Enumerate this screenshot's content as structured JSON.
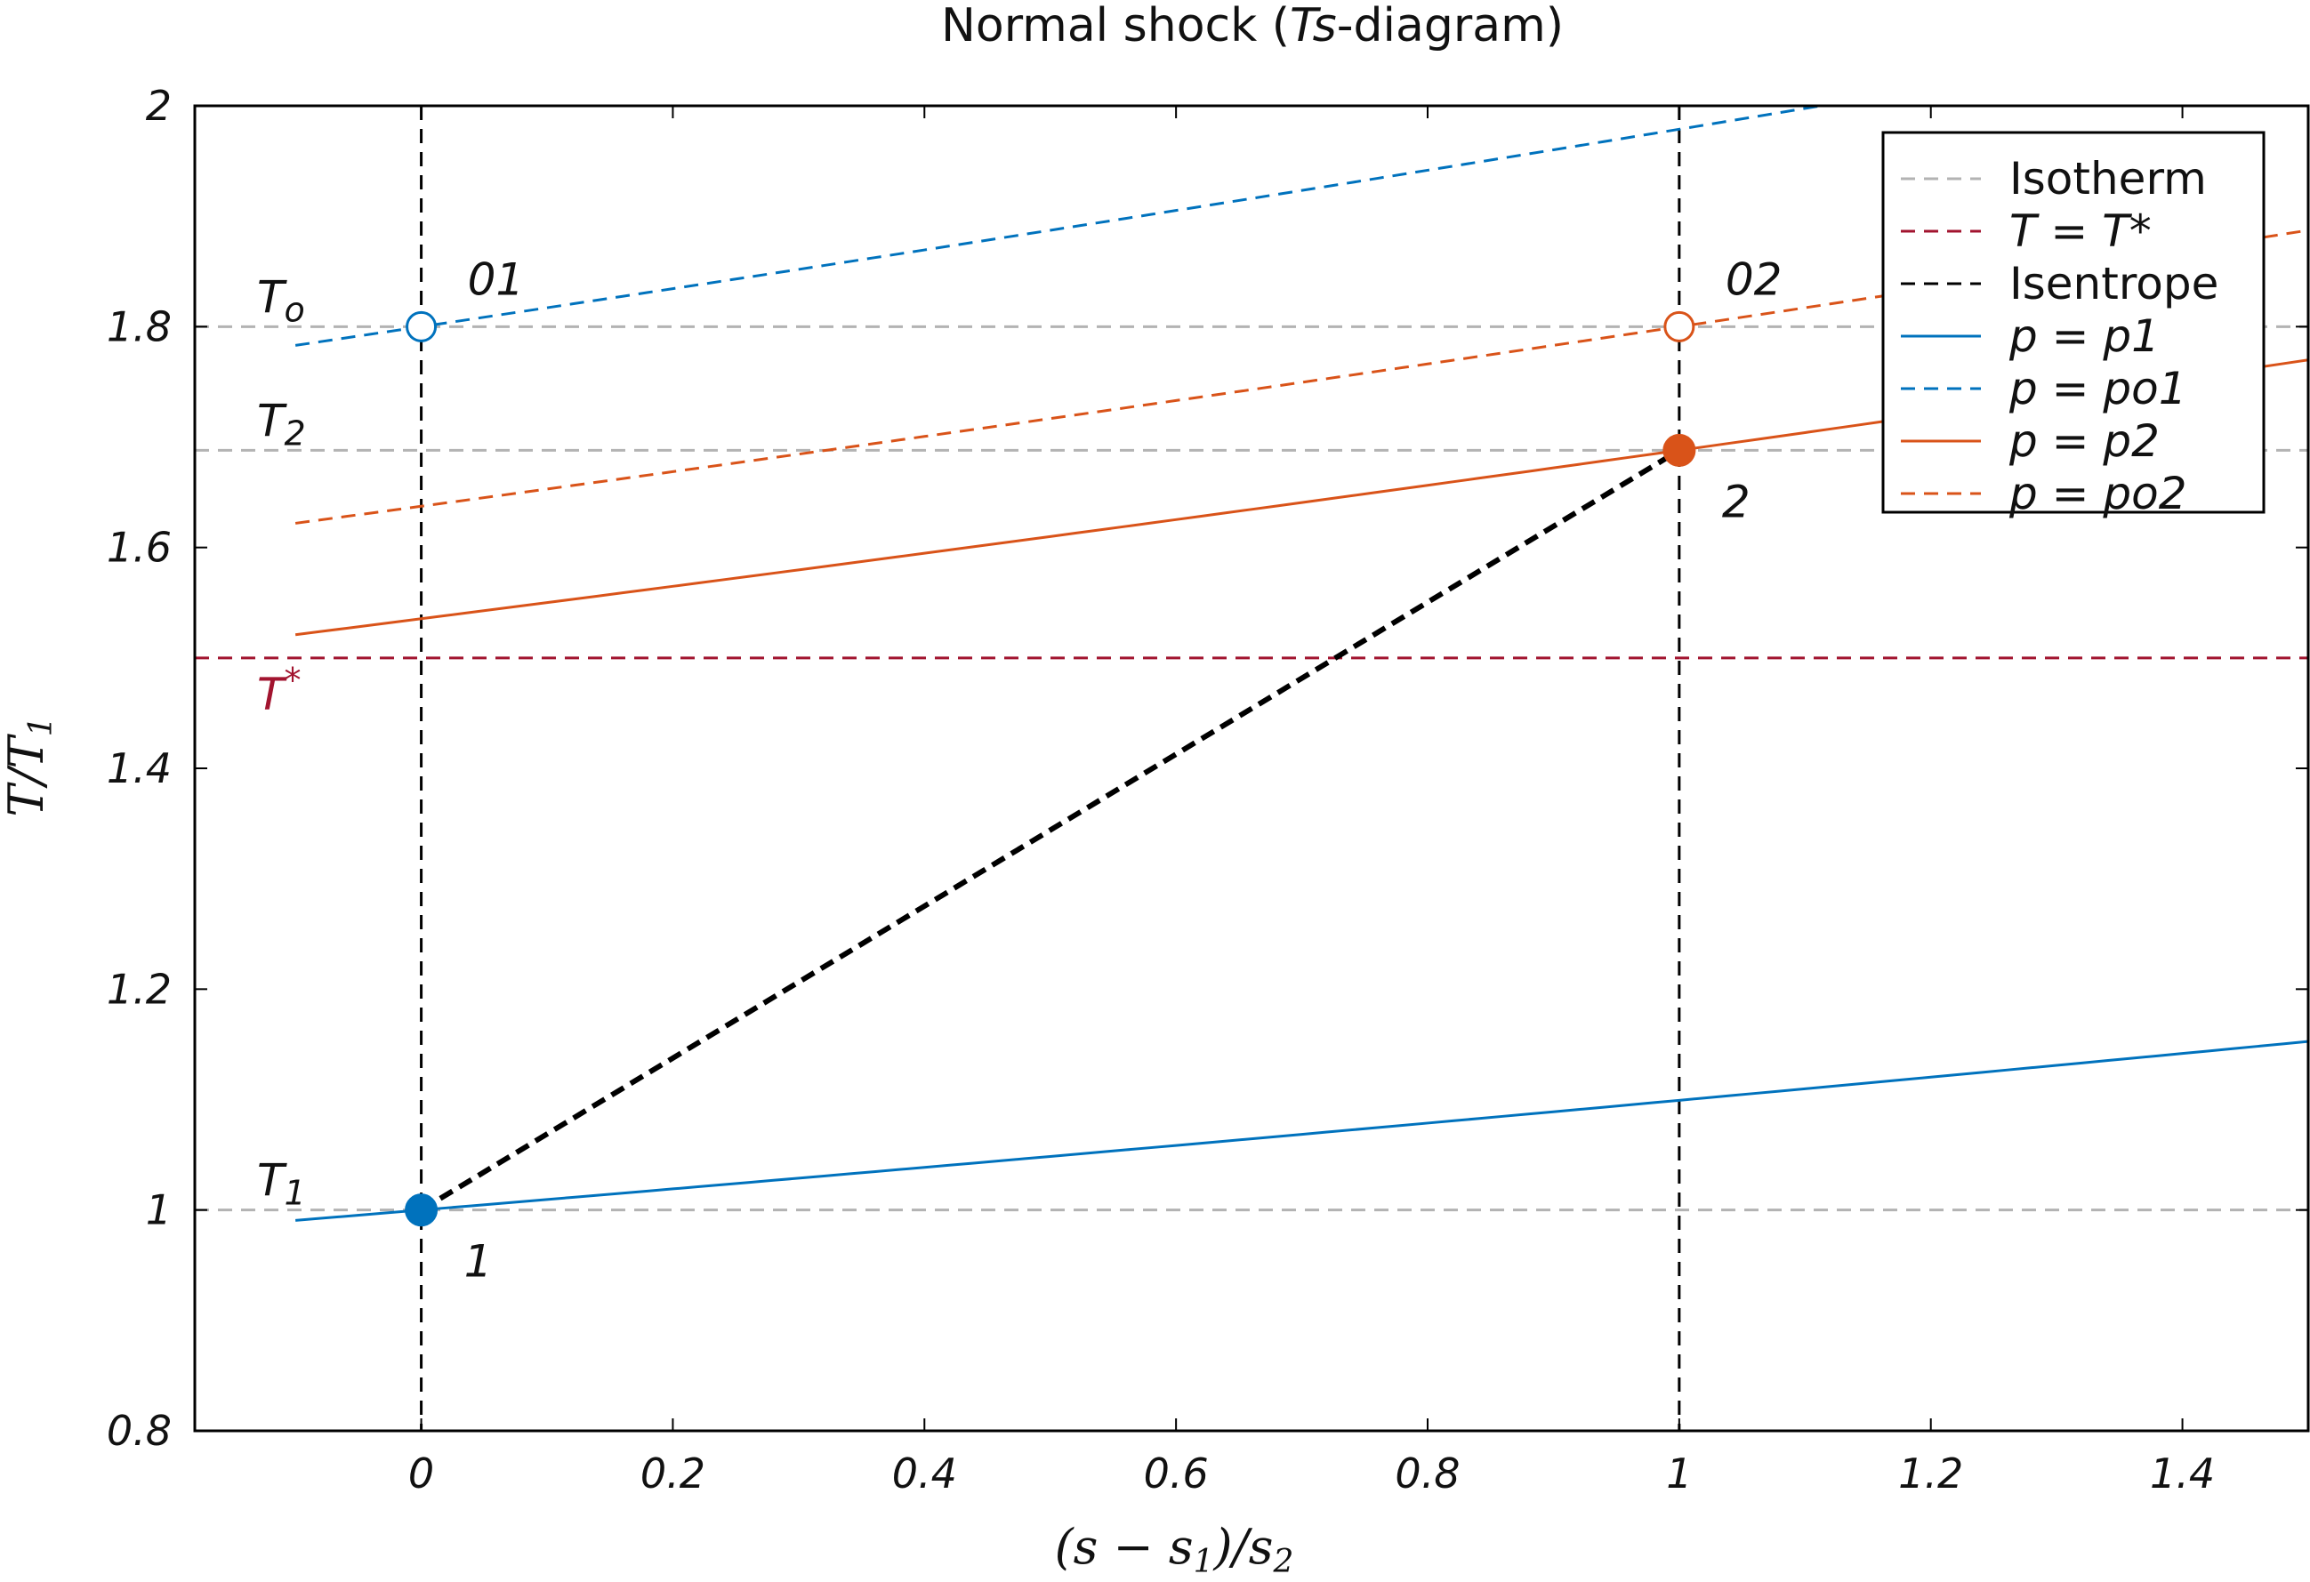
{
  "chart_data": {
    "type": "line",
    "title": "Normal shock (Ts-diagram)",
    "title_parts": {
      "pre": "Normal shock (",
      "var": "Ts",
      "post": "-diagram)"
    },
    "xlabel": "(s − s1)/s2",
    "xlabel_parts": {
      "pre": "(s − s",
      "sub1": "1",
      "mid": ")/s",
      "sub2": "2"
    },
    "ylabel": "T/T1",
    "ylabel_parts": {
      "main": "T/T",
      "sub": "1"
    },
    "xlim": [
      -0.18,
      1.5
    ],
    "ylim": [
      0.8,
      2.0
    ],
    "xticks": [
      0,
      0.2,
      0.4,
      0.6,
      0.8,
      1,
      1.2,
      1.4
    ],
    "xtick_labels": [
      "0",
      "0.2",
      "0.4",
      "0.6",
      "0.8",
      "1",
      "1.2",
      "1.4"
    ],
    "yticks": [
      0.8,
      1.0,
      1.2,
      1.4,
      1.6,
      1.8,
      2.0
    ],
    "ytick_labels": [
      "0.8",
      "1",
      "1.2",
      "1.4",
      "1.6",
      "1.8",
      "2"
    ],
    "grid": false,
    "legend_position": "top-right",
    "legend": [
      {
        "label": "Isotherm",
        "math": false,
        "color": "#b3b3b3",
        "dash": "dashed"
      },
      {
        "label": "T = T*",
        "math": true,
        "color": "#a2142f",
        "dash": "dashed"
      },
      {
        "label": "Isentrope",
        "math": false,
        "color": "#000000",
        "dash": "dashed"
      },
      {
        "label": "p = p1",
        "math": true,
        "color": "#0072bd",
        "dash": "solid"
      },
      {
        "label": "p = po1",
        "math": true,
        "color": "#0072bd",
        "dash": "dashed"
      },
      {
        "label": "p = p2",
        "math": true,
        "color": "#d95319",
        "dash": "solid"
      },
      {
        "label": "p = po2",
        "math": true,
        "color": "#d95319",
        "dash": "dashed"
      }
    ],
    "isotherms": [
      {
        "y": 1.0,
        "label": "T1"
      },
      {
        "y": 1.688,
        "label": "T2"
      },
      {
        "y": 1.8,
        "label": "To"
      }
    ],
    "t_star": {
      "y": 1.5,
      "label": "T*"
    },
    "isentropes_x": [
      0,
      1
    ],
    "isobars": [
      {
        "name": "p = p1",
        "color": "#0072bd",
        "dash": "solid",
        "T0": 1.0,
        "s0": 0.0
      },
      {
        "name": "p = po1",
        "color": "#0072bd",
        "dash": "dashed",
        "T0": 1.8,
        "s0": 0.0
      },
      {
        "name": "p = p2",
        "color": "#d95319",
        "dash": "solid",
        "T0": 1.688,
        "s0": 1.0
      },
      {
        "name": "p = po2",
        "color": "#d95319",
        "dash": "dashed",
        "T0": 1.8,
        "s0": 1.0
      }
    ],
    "isobar_curve": {
      "x_start": -0.1,
      "x_end": 1.5,
      "exp_k": 0.0947
    },
    "shock_line": {
      "x": [
        0,
        1
      ],
      "y": [
        1.0,
        1.688
      ]
    },
    "points": [
      {
        "label": "1",
        "x": 0,
        "y": 1.0,
        "filled": true,
        "color": "#0072bd"
      },
      {
        "label": "01",
        "x": 0,
        "y": 1.8,
        "filled": false,
        "color": "#0072bd"
      },
      {
        "label": "2",
        "x": 1,
        "y": 1.688,
        "filled": true,
        "color": "#d95319"
      },
      {
        "label": "02",
        "x": 1,
        "y": 1.8,
        "filled": false,
        "color": "#d95319"
      }
    ]
  }
}
